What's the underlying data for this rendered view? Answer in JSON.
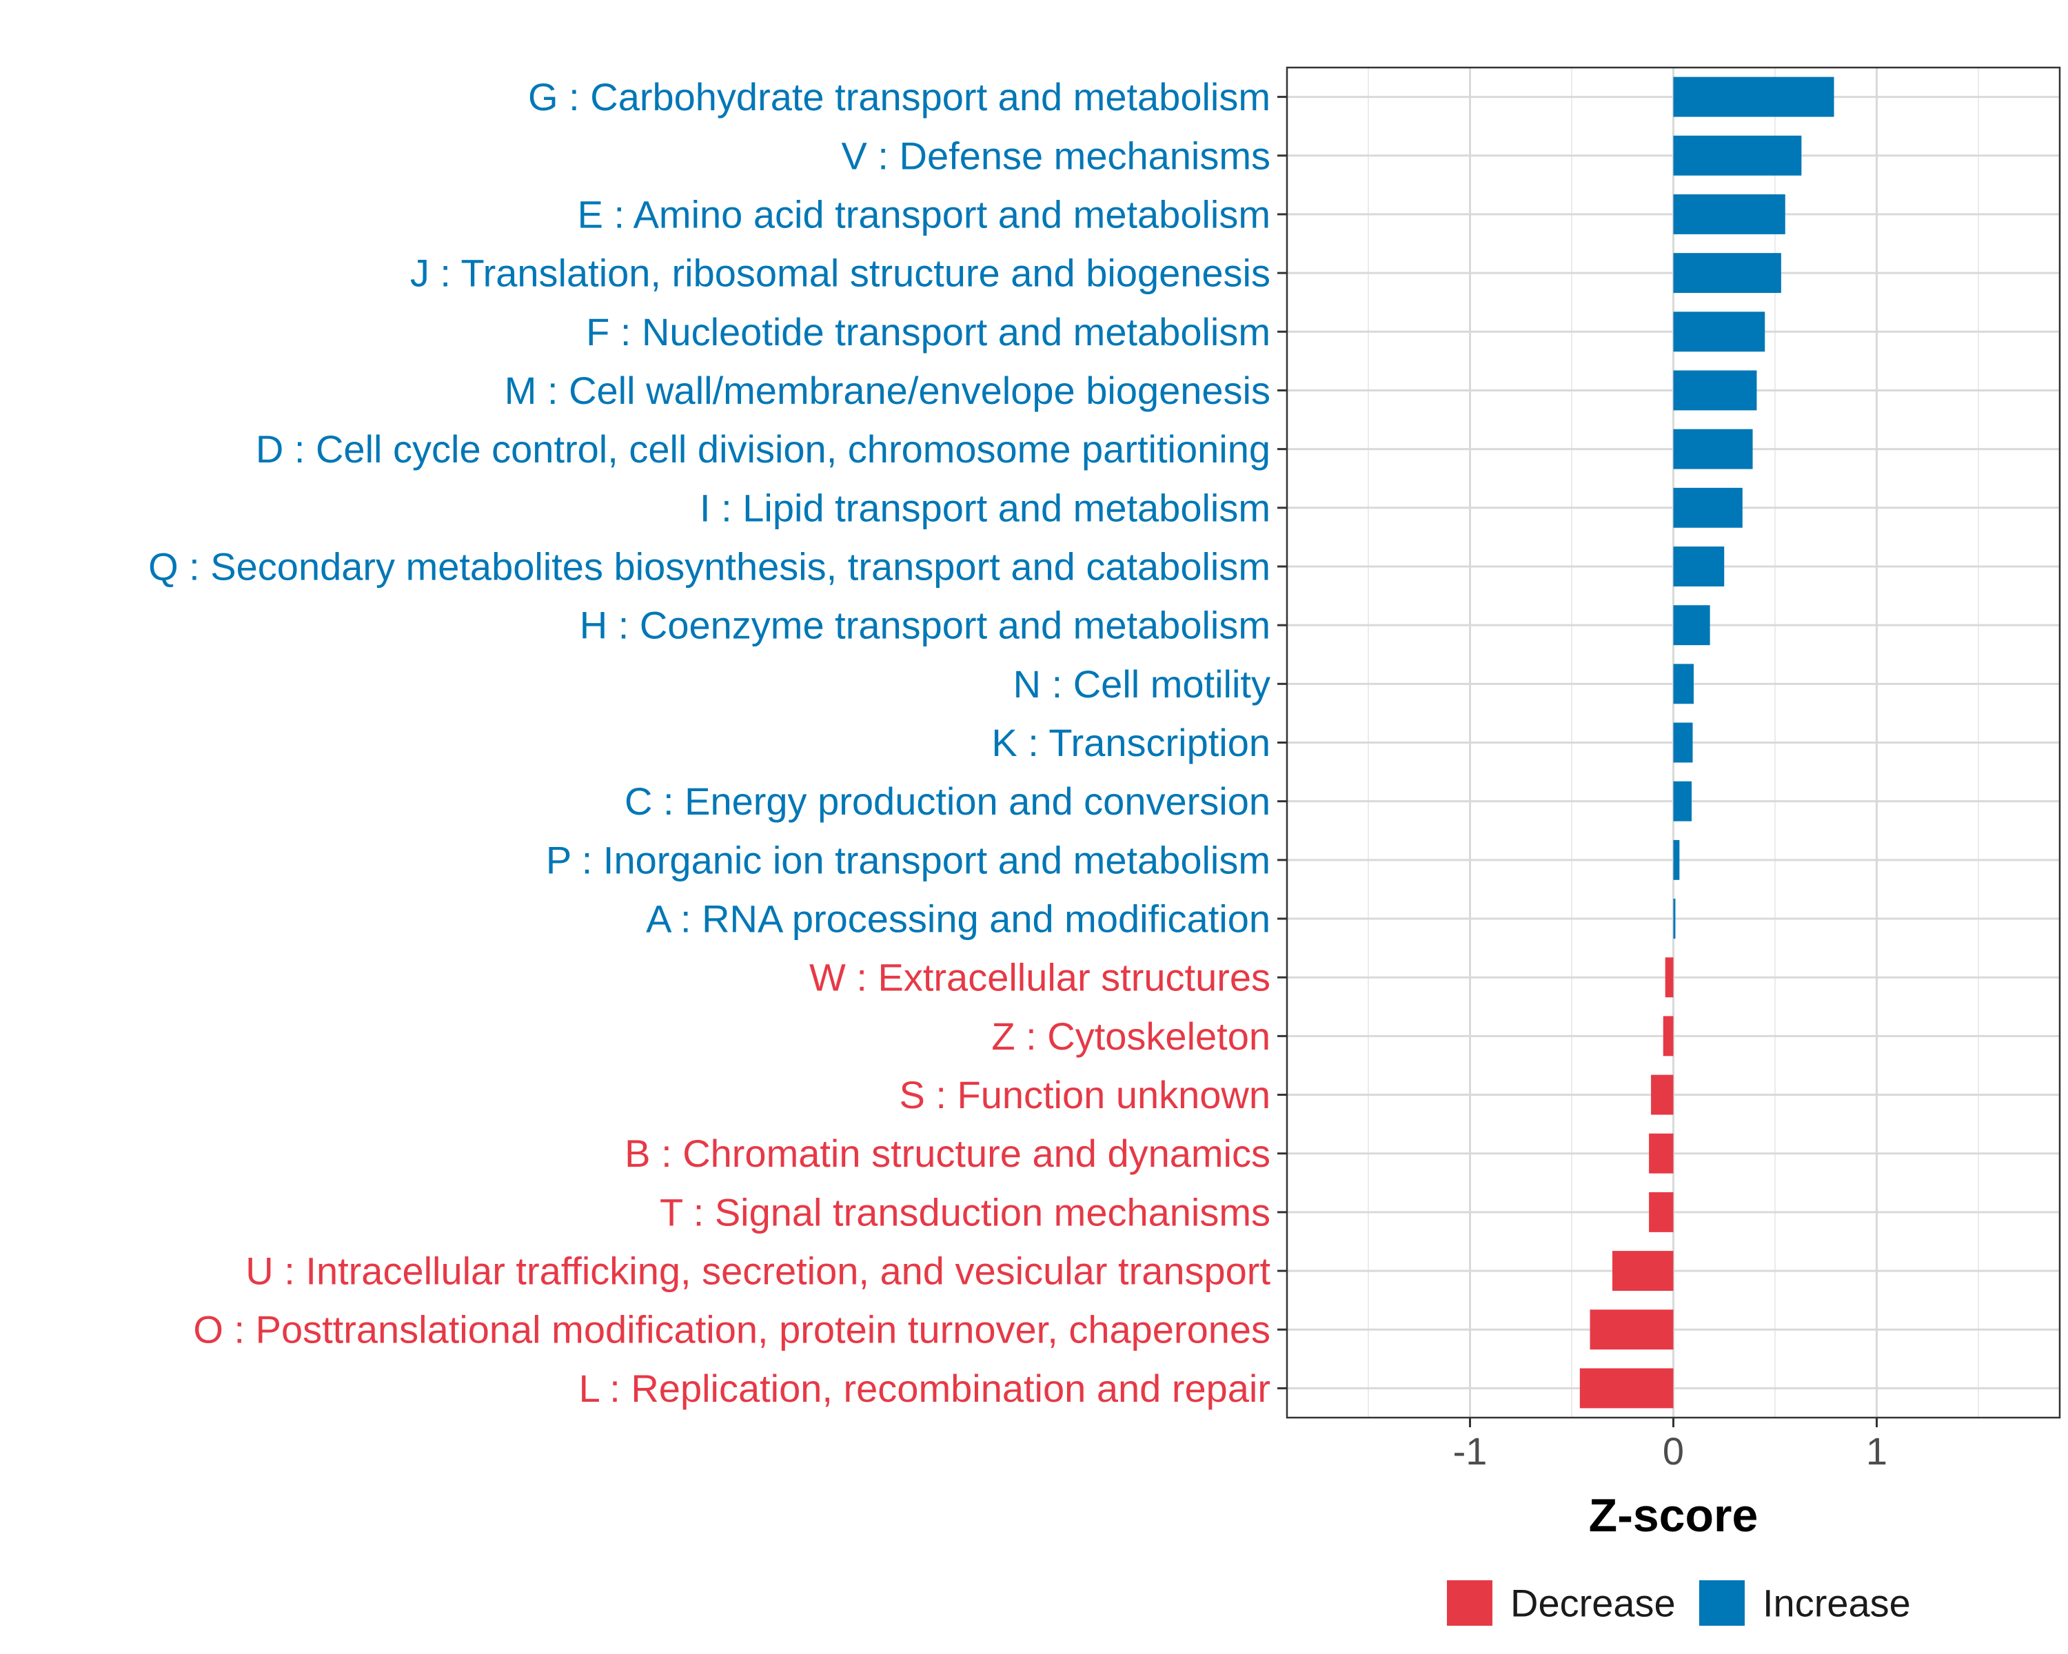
{
  "chart_data": {
    "type": "bar",
    "orientation": "horizontal",
    "title": "",
    "xlabel": "Z-score",
    "ylabel": "",
    "xlim": [
      -1.9,
      1.9
    ],
    "xticks": [
      -1,
      0,
      1
    ],
    "xtick_labels": [
      "-1",
      "0",
      "1"
    ],
    "grid": true,
    "legend_position": "bottom",
    "colors": {
      "Increase": "#0077B6",
      "Decrease": "#E63946"
    },
    "categories": [
      "G : Carbohydrate transport and metabolism",
      "V : Defense mechanisms",
      "E : Amino acid transport and metabolism",
      "J : Translation, ribosomal structure and biogenesis",
      "F : Nucleotide transport and metabolism",
      "M : Cell wall/membrane/envelope biogenesis",
      "D : Cell cycle control, cell division, chromosome partitioning",
      "I : Lipid transport and metabolism",
      "Q : Secondary metabolites biosynthesis, transport and catabolism",
      "H : Coenzyme transport and metabolism",
      "N : Cell motility",
      "K : Transcription",
      "C : Energy production and conversion",
      "P : Inorganic ion transport and metabolism",
      "A : RNA processing and modification",
      "W : Extracellular structures",
      "Z : Cytoskeleton",
      "S : Function unknown",
      "B : Chromatin structure and dynamics",
      "T : Signal transduction mechanisms",
      "U : Intracellular trafficking, secretion, and vesicular transport",
      "O : Posttranslational modification, protein turnover, chaperones",
      "L : Replication, recombination and repair"
    ],
    "values": [
      0.79,
      0.63,
      0.55,
      0.53,
      0.45,
      0.41,
      0.39,
      0.34,
      0.25,
      0.18,
      0.1,
      0.095,
      0.09,
      0.03,
      0.01,
      -0.04,
      -0.05,
      -0.11,
      -0.12,
      -0.12,
      -0.3,
      -0.41,
      -0.46
    ],
    "groups": [
      "Increase",
      "Increase",
      "Increase",
      "Increase",
      "Increase",
      "Increase",
      "Increase",
      "Increase",
      "Increase",
      "Increase",
      "Increase",
      "Increase",
      "Increase",
      "Increase",
      "Increase",
      "Decrease",
      "Decrease",
      "Decrease",
      "Decrease",
      "Decrease",
      "Decrease",
      "Decrease",
      "Decrease"
    ],
    "legend": [
      {
        "name": "Decrease",
        "color": "#E63946"
      },
      {
        "name": "Increase",
        "color": "#0077B6"
      }
    ]
  }
}
